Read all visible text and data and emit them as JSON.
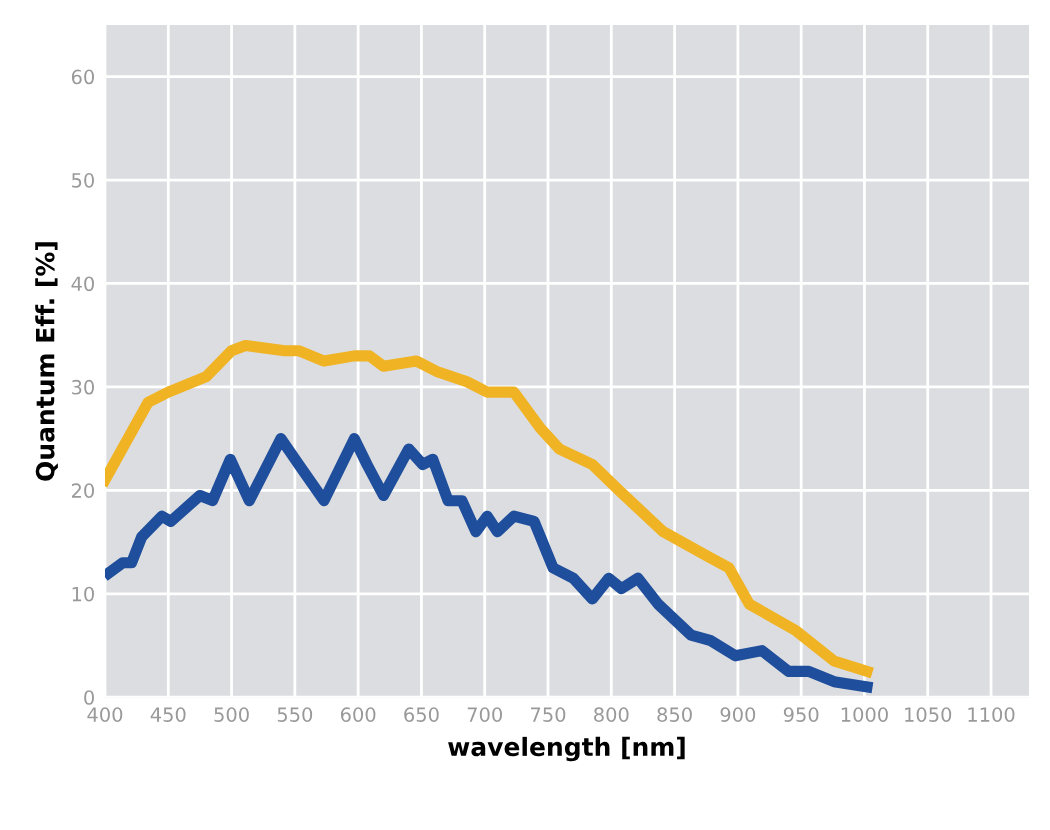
{
  "chart_data": {
    "type": "line",
    "xlabel": "wavelength [nm]",
    "ylabel": "Quantum Eff. [%]",
    "xlim": [
      400,
      1130
    ],
    "ylim": [
      0,
      65
    ],
    "xticks": [
      400,
      450,
      500,
      550,
      600,
      650,
      700,
      750,
      800,
      850,
      900,
      950,
      1000,
      1050,
      1100
    ],
    "yticks": [
      0,
      10,
      20,
      30,
      40,
      50,
      60
    ],
    "grid": true,
    "marker": "none",
    "line_style": "solid",
    "series": [
      {
        "color": "#f0b323",
        "x": [
          400,
          434,
          450,
          480,
          500,
          511,
          542,
          553,
          573,
          597,
          609,
          620,
          646,
          662,
          686,
          702,
          723,
          744,
          759,
          785,
          806,
          841,
          878,
          893,
          909,
          945,
          976,
          1002
        ],
        "values": [
          21,
          28.5,
          29.5,
          31,
          33.5,
          34,
          33.5,
          33.5,
          32.5,
          33,
          33,
          32,
          32.5,
          31.5,
          30.5,
          29.5,
          29.5,
          26,
          24,
          22.5,
          20,
          16,
          13.5,
          12.5,
          9,
          6.5,
          3.5,
          2.5
        ]
      },
      {
        "color": "#1f4e9c",
        "x": [
          403,
          414,
          421,
          429,
          445,
          452,
          475,
          485,
          499,
          514,
          539,
          553,
          573,
          597,
          607,
          620,
          640,
          651,
          659,
          671,
          682,
          693,
          702,
          710,
          723,
          739,
          754,
          770,
          785,
          798,
          808,
          821,
          837,
          863,
          878,
          898,
          919,
          940,
          956,
          976,
          1002
        ],
        "values": [
          12,
          13,
          13,
          15.5,
          17.5,
          17,
          19.5,
          19,
          23,
          19,
          25,
          22.5,
          19,
          25,
          22.5,
          19.5,
          24,
          22.5,
          23,
          19,
          19,
          16,
          17.5,
          16,
          17.5,
          17,
          12.5,
          11.5,
          9.5,
          11.5,
          10.5,
          11.5,
          9,
          6,
          5.5,
          4,
          4.5,
          2.5,
          2.5,
          1.5,
          1
        ]
      }
    ]
  }
}
